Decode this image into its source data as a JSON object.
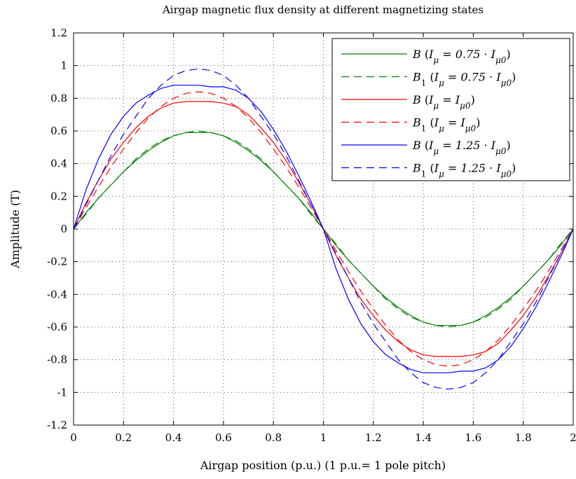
{
  "chart_data": {
    "type": "line",
    "title": "Airgap magnetic flux density at different magnetizing states",
    "xlabel": "Airgap position (p.u.) (1 p.u.= 1 pole pitch)",
    "ylabel": "Amplitude (T)",
    "xlim": [
      0,
      2
    ],
    "ylim": [
      -1.2,
      1.2
    ],
    "xticks": [
      0,
      0.2,
      0.4,
      0.6,
      0.8,
      1,
      1.2,
      1.4,
      1.6,
      1.8,
      2
    ],
    "xtick_labels": [
      "0",
      "0.2",
      "0.4",
      "0.6",
      "0.8",
      "1",
      "1.2",
      "1.4",
      "1.6",
      "1.8",
      "2"
    ],
    "yticks": [
      1.2,
      1,
      0.8,
      0.6,
      0.4,
      0.2,
      0,
      -0.2,
      -0.4,
      -0.6,
      -0.8,
      -1,
      -1.2
    ],
    "ytick_labels": [
      "1.2",
      "1",
      "0.8",
      "0.6",
      "0.4",
      "0.2",
      "0",
      "-0.2",
      "-0.4",
      "-0.6",
      "-0.8",
      "-1",
      "-1.2"
    ],
    "grid": true,
    "legend_position": "top-right",
    "x": [
      0,
      0.05,
      0.1,
      0.15,
      0.2,
      0.25,
      0.3,
      0.35,
      0.4,
      0.45,
      0.5,
      0.55,
      0.6,
      0.65,
      0.7,
      0.75,
      0.8,
      0.85,
      0.9,
      0.95,
      1,
      1.05,
      1.1,
      1.15,
      1.2,
      1.25,
      1.3,
      1.35,
      1.4,
      1.45,
      1.5,
      1.55,
      1.6,
      1.65,
      1.7,
      1.75,
      1.8,
      1.85,
      1.9,
      1.95,
      2
    ],
    "series": [
      {
        "name": "B (Iμ = 0.75 · Iμ0)",
        "color": "#008000",
        "style": "solid",
        "values": [
          0,
          0.1,
          0.19,
          0.27,
          0.35,
          0.42,
          0.48,
          0.53,
          0.57,
          0.59,
          0.59,
          0.59,
          0.57,
          0.53,
          0.48,
          0.42,
          0.35,
          0.27,
          0.19,
          0.1,
          0,
          -0.1,
          -0.19,
          -0.27,
          -0.35,
          -0.42,
          -0.48,
          -0.53,
          -0.57,
          -0.59,
          -0.59,
          -0.59,
          -0.57,
          -0.53,
          -0.48,
          -0.42,
          -0.35,
          -0.27,
          -0.19,
          -0.1,
          0
        ]
      },
      {
        "name": "B1 (Iμ = 0.75 · Iμ0)",
        "color": "#008000",
        "style": "dashed",
        "values": [
          0,
          0.09,
          0.19,
          0.27,
          0.35,
          0.43,
          0.49,
          0.54,
          0.57,
          0.59,
          0.6,
          0.59,
          0.57,
          0.54,
          0.49,
          0.43,
          0.35,
          0.27,
          0.19,
          0.09,
          0,
          -0.09,
          -0.19,
          -0.27,
          -0.35,
          -0.43,
          -0.49,
          -0.54,
          -0.57,
          -0.59,
          -0.6,
          -0.59,
          -0.57,
          -0.54,
          -0.49,
          -0.43,
          -0.35,
          -0.27,
          -0.19,
          -0.09,
          0
        ]
      },
      {
        "name": "B (Iμ = Iμ0)",
        "color": "#ff0000",
        "style": "solid",
        "values": [
          0,
          0.16,
          0.3,
          0.43,
          0.53,
          0.62,
          0.69,
          0.74,
          0.77,
          0.78,
          0.78,
          0.78,
          0.77,
          0.75,
          0.7,
          0.62,
          0.53,
          0.42,
          0.29,
          0.15,
          0,
          -0.16,
          -0.3,
          -0.43,
          -0.53,
          -0.62,
          -0.69,
          -0.74,
          -0.77,
          -0.78,
          -0.78,
          -0.78,
          -0.77,
          -0.75,
          -0.7,
          -0.62,
          -0.53,
          -0.42,
          -0.29,
          -0.15,
          0
        ]
      },
      {
        "name": "B1 (Iμ = Iμ0)",
        "color": "#ff0000",
        "style": "dashed",
        "values": [
          0,
          0.13,
          0.26,
          0.38,
          0.49,
          0.59,
          0.68,
          0.75,
          0.8,
          0.83,
          0.84,
          0.83,
          0.8,
          0.75,
          0.68,
          0.59,
          0.49,
          0.38,
          0.26,
          0.13,
          0,
          -0.13,
          -0.26,
          -0.38,
          -0.49,
          -0.59,
          -0.68,
          -0.75,
          -0.8,
          -0.83,
          -0.84,
          -0.83,
          -0.8,
          -0.75,
          -0.68,
          -0.59,
          -0.49,
          -0.38,
          -0.26,
          -0.13,
          0
        ]
      },
      {
        "name": "B (Iμ = 1.25 · Iμ0)",
        "color": "#0000ff",
        "style": "solid",
        "values": [
          0,
          0.24,
          0.43,
          0.58,
          0.69,
          0.77,
          0.82,
          0.86,
          0.88,
          0.88,
          0.88,
          0.87,
          0.87,
          0.85,
          0.8,
          0.72,
          0.61,
          0.48,
          0.33,
          0.17,
          0,
          -0.24,
          -0.43,
          -0.58,
          -0.69,
          -0.77,
          -0.82,
          -0.86,
          -0.88,
          -0.88,
          -0.88,
          -0.87,
          -0.87,
          -0.85,
          -0.8,
          -0.72,
          -0.61,
          -0.48,
          -0.33,
          -0.17,
          0
        ]
      },
      {
        "name": "B1 (Iμ = 1.25 · Iμ0)",
        "color": "#0000ff",
        "style": "dashed",
        "values": [
          0,
          0.15,
          0.3,
          0.45,
          0.58,
          0.69,
          0.8,
          0.88,
          0.94,
          0.97,
          0.98,
          0.97,
          0.94,
          0.88,
          0.8,
          0.69,
          0.58,
          0.45,
          0.3,
          0.15,
          0,
          -0.15,
          -0.3,
          -0.45,
          -0.58,
          -0.69,
          -0.8,
          -0.88,
          -0.94,
          -0.97,
          -0.98,
          -0.97,
          -0.94,
          -0.88,
          -0.8,
          -0.69,
          -0.58,
          -0.45,
          -0.3,
          -0.15,
          0
        ]
      }
    ]
  },
  "legend": {
    "entries": [
      {
        "symbol": "B",
        "sub": "",
        "cond": "0.75 · I",
        "cond_sub": "μ0"
      },
      {
        "symbol": "B",
        "sub": "1",
        "cond": "0.75 · I",
        "cond_sub": "μ0"
      },
      {
        "symbol": "B",
        "sub": "",
        "cond": "I",
        "cond_sub": "μ0"
      },
      {
        "symbol": "B",
        "sub": "1",
        "cond": "I",
        "cond_sub": "μ0"
      },
      {
        "symbol": "B",
        "sub": "",
        "cond": "1.25 · I",
        "cond_sub": "μ0"
      },
      {
        "symbol": "B",
        "sub": "1",
        "cond": "1.25 · I",
        "cond_sub": "μ0"
      }
    ],
    "current_symbol": "I",
    "current_sub": "μ"
  }
}
